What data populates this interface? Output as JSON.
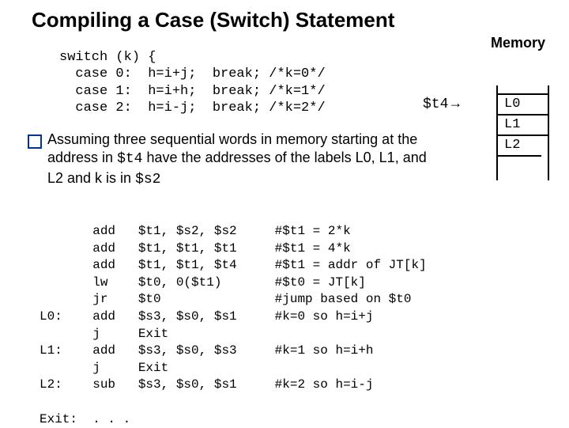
{
  "title": "Compiling a Case (Switch) Statement",
  "memory_label": "Memory",
  "switch_code": "switch (k) {\n  case 0:  h=i+j;  break; /*k=0*/\n  case 1:  h=i+h;  break; /*k=1*/\n  case 2:  h=i-j;  break; /*k=2*/",
  "t4_reg": "$t4",
  "memory_cells": [
    "L0",
    "L1",
    "L2"
  ],
  "assume_pre": "Assuming three sequential words in memory starting at the address in ",
  "assume_reg1": "$t4",
  "assume_mid": " have the addresses of the labels L0, L1, and L2 and k is in ",
  "assume_reg2": "$s2",
  "asm": "       add   $t1, $s2, $s2     #$t1 = 2*k\n       add   $t1, $t1, $t1     #$t1 = 4*k\n       add   $t1, $t1, $t4     #$t1 = addr of JT[k]\n       lw    $t0, 0($t1)       #$t0 = JT[k]\n       jr    $t0               #jump based on $t0\nL0:    add   $s3, $s0, $s1     #k=0 so h=i+j\n       j     Exit\nL1:    add   $s3, $s0, $s3     #k=1 so h=i+h\n       j     Exit\nL2:    sub   $s3, $s0, $s1     #k=2 so h=i-j\n\nExit:  . . .",
  "colors": {
    "bullet_border": "#003399",
    "text": "#000000",
    "bg": "#ffffff"
  }
}
